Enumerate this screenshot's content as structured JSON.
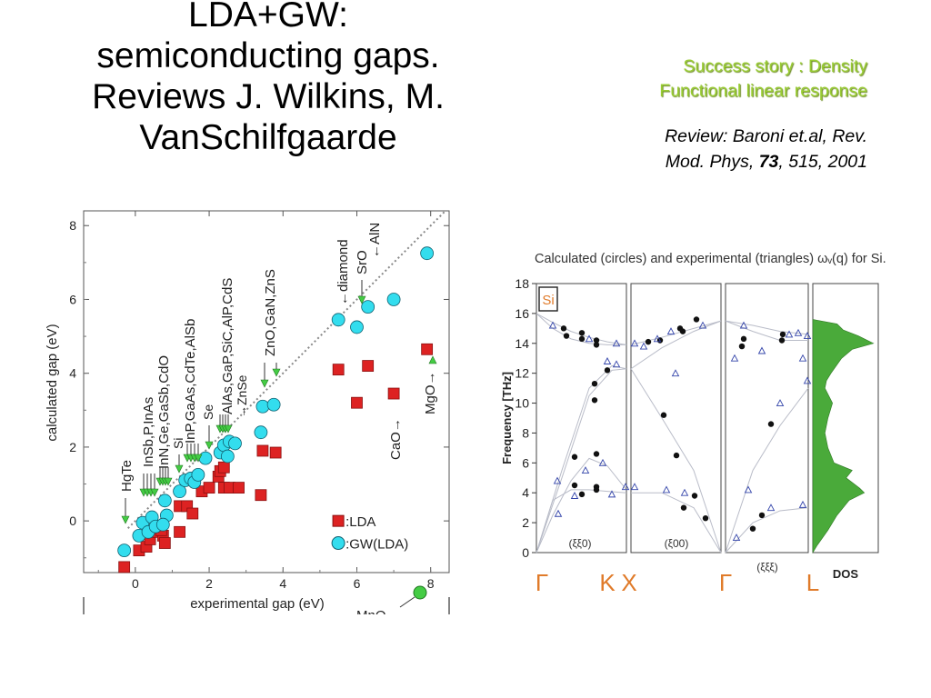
{
  "slide": {
    "title_lines": [
      "LDA+GW:",
      "semiconducting gaps.",
      "Reviews J. Wilkins, M.",
      "VanSchilfgaarde"
    ],
    "subtitle_lines": [
      "Success story : Density",
      "Functional linear response"
    ],
    "reference": {
      "line1": "Review: Baroni et.al, Rev.",
      "line2_prefix": "Mod. Phys, ",
      "volume": "73",
      "line2_suffix": ", 515, 2001"
    }
  },
  "chart_data": [
    {
      "type": "scatter",
      "title": "",
      "xlabel": "experimental gap (eV)",
      "ylabel": "calculated gap (eV)",
      "xlim": [
        -1.4,
        8.5
      ],
      "ylim": [
        -1.4,
        8.4
      ],
      "xticks": [
        "0",
        "2",
        "4",
        "6",
        "8"
      ],
      "yticks": [
        "0",
        "2",
        "4",
        "6",
        "8"
      ],
      "diagonal": "dotted y = x",
      "legend_position": "bottom-right",
      "series": [
        {
          "name": ":LDA",
          "marker": "square",
          "color": "#dd2222",
          "points": [
            [
              -0.3,
              -1.25
            ],
            [
              0.1,
              -0.8
            ],
            [
              0.3,
              -0.7
            ],
            [
              0.4,
              -0.5
            ],
            [
              0.6,
              -0.3
            ],
            [
              0.75,
              -0.4
            ],
            [
              0.8,
              -0.6
            ],
            [
              0.7,
              -0.25
            ],
            [
              1.2,
              -0.3
            ],
            [
              1.2,
              0.4
            ],
            [
              1.4,
              0.4
            ],
            [
              1.55,
              0.2
            ],
            [
              1.8,
              0.8
            ],
            [
              2.0,
              0.9
            ],
            [
              2.25,
              1.2
            ],
            [
              2.3,
              1.35
            ],
            [
              2.4,
              1.45
            ],
            [
              2.4,
              0.9
            ],
            [
              2.55,
              0.9
            ],
            [
              2.8,
              0.9
            ],
            [
              3.4,
              0.7
            ],
            [
              3.45,
              1.9
            ],
            [
              3.8,
              1.85
            ],
            [
              5.5,
              4.1
            ],
            [
              6.0,
              3.2
            ],
            [
              6.3,
              4.2
            ],
            [
              7.0,
              3.45
            ],
            [
              7.9,
              4.65
            ]
          ]
        },
        {
          "name": ":GW(LDA)",
          "marker": "circle",
          "color": "#33ddee",
          "points": [
            [
              -0.3,
              -0.8
            ],
            [
              0.1,
              -0.4
            ],
            [
              0.2,
              -0.05
            ],
            [
              0.35,
              -0.3
            ],
            [
              0.45,
              0.1
            ],
            [
              0.55,
              -0.15
            ],
            [
              0.8,
              0.55
            ],
            [
              0.85,
              0.15
            ],
            [
              0.75,
              -0.1
            ],
            [
              1.2,
              0.8
            ],
            [
              1.35,
              1.1
            ],
            [
              1.5,
              1.15
            ],
            [
              1.6,
              1.05
            ],
            [
              1.7,
              1.25
            ],
            [
              1.9,
              1.7
            ],
            [
              2.3,
              1.85
            ],
            [
              2.4,
              2.05
            ],
            [
              2.55,
              2.15
            ],
            [
              2.7,
              2.1
            ],
            [
              2.5,
              1.75
            ],
            [
              3.4,
              2.4
            ],
            [
              3.45,
              3.1
            ],
            [
              3.75,
              3.15
            ],
            [
              5.5,
              5.45
            ],
            [
              6.0,
              5.25
            ],
            [
              6.3,
              5.8
            ],
            [
              7.0,
              6.0
            ],
            [
              7.9,
              7.25
            ]
          ]
        }
      ],
      "annotations": [
        "HgTe",
        "InSb,P,InAs",
        "InN,Ge,GaSb,CdO",
        "Si",
        "InP,GaAs,CdTe,AlSb",
        "Se",
        "AlAs,GaP,SiC,AlP,CdS",
        "ZnSe",
        "ZnO,GaN,ZnS",
        "diamond",
        "SrO",
        "AlN",
        "CaO",
        "MgO"
      ],
      "cut_off_label": "MnO"
    },
    {
      "type": "line",
      "title": "Calculated (circles) and experimental (triangles) ωᵥ(q) for Si.",
      "ylabel": "Frequency [THz]",
      "ylim": [
        0,
        18
      ],
      "yticks": [
        "0",
        "2",
        "4",
        "6",
        "8",
        "10",
        "12",
        "14",
        "16",
        "18"
      ],
      "material_label": "Si",
      "panel_labels": [
        "(ξξ0)",
        "(ξ00)",
        "(ξξξ)"
      ],
      "dos_label": "DOS",
      "high_symmetry_points": [
        "Γ",
        "K",
        "X",
        "Γ",
        "L"
      ],
      "colors": {
        "dos": "#4aaa3a",
        "high_symmetry": "#e07b2a",
        "triangles": "#3344aa"
      },
      "branches_note": "phonon dispersion lines digitised as approximate frequencies in THz"
    }
  ]
}
